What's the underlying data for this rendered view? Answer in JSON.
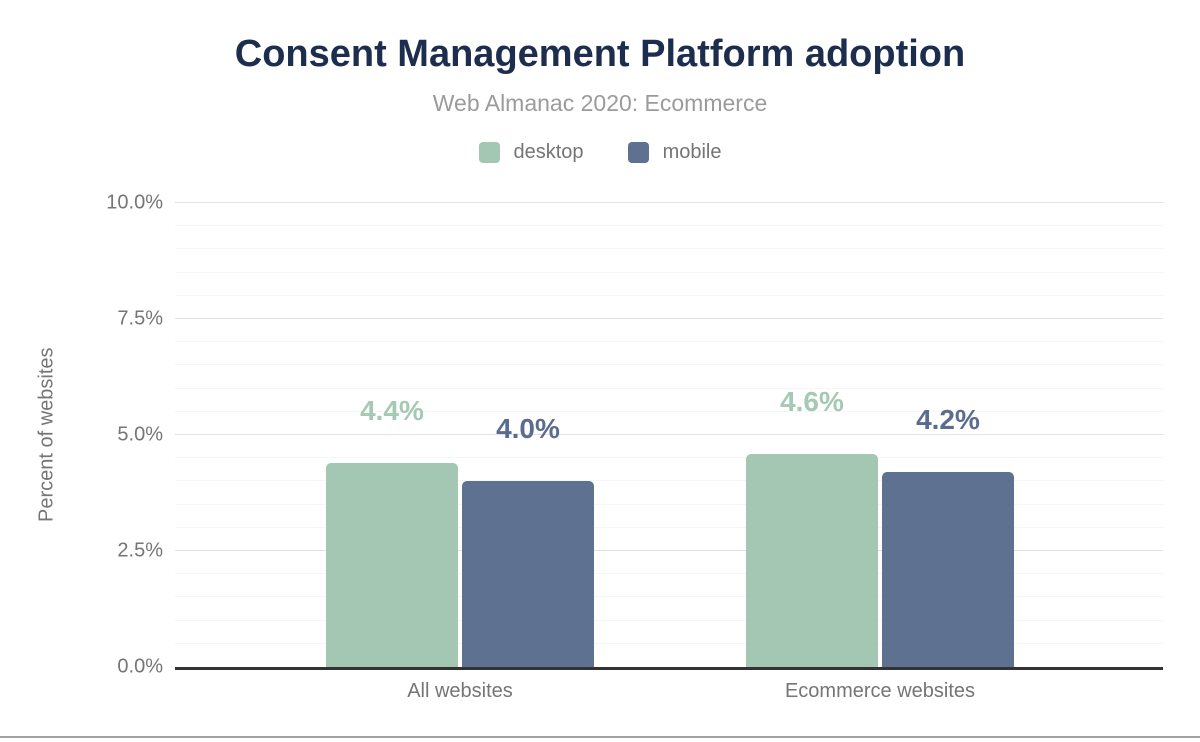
{
  "chart": {
    "title": "Consent Management Platform adoption",
    "subtitle": "Web Almanac 2020: Ecommerce",
    "ylabel": "Percent of websites"
  },
  "chart_data": {
    "type": "bar",
    "title": "Consent Management Platform adoption",
    "subtitle": "Web Almanac 2020: Ecommerce",
    "categories": [
      "All websites",
      "Ecommerce websites"
    ],
    "series": [
      {
        "name": "desktop",
        "color": "#a3c7b2",
        "label_color": "#a4c9b4",
        "values": [
          4.4,
          4.6
        ],
        "value_labels": [
          "4.4%",
          "4.6%"
        ]
      },
      {
        "name": "mobile",
        "color": "#5f7190",
        "label_color": "#5a6d90",
        "values": [
          4.0,
          4.2
        ],
        "value_labels": [
          "4.0%",
          "4.2%"
        ]
      }
    ],
    "xlabel": "",
    "ylabel": "Percent of websites",
    "ylim": [
      0,
      10
    ],
    "yticks": [
      {
        "value": 0,
        "label": "0.0%"
      },
      {
        "value": 2.5,
        "label": "2.5%"
      },
      {
        "value": 5,
        "label": "5.0%"
      },
      {
        "value": 7.5,
        "label": "7.5%"
      },
      {
        "value": 10,
        "label": "10.0%"
      }
    ],
    "minor_grid_step": 0.5,
    "grid": true,
    "legend_position": "top",
    "axis_line_color": "#333333",
    "major_grid_color": "#e2e2e2",
    "minor_grid_color": "#f6f6f6"
  }
}
